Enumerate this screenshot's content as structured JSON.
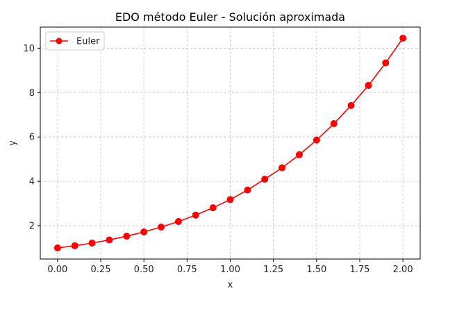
{
  "chart_data": {
    "type": "line",
    "title": "EDO método Euler - Solución aproximada",
    "xlabel": "x",
    "ylabel": "y",
    "xlim": [
      -0.1,
      2.1
    ],
    "ylim": [
      0.5,
      10.95
    ],
    "xticks": [
      0.0,
      0.25,
      0.5,
      0.75,
      1.0,
      1.25,
      1.5,
      1.75,
      2.0
    ],
    "xtick_labels": [
      "0.00",
      "0.25",
      "0.50",
      "0.75",
      "1.00",
      "1.25",
      "1.50",
      "1.75",
      "2.00"
    ],
    "yticks": [
      2,
      4,
      6,
      8,
      10
    ],
    "ytick_labels": [
      "2",
      "4",
      "6",
      "8",
      "10"
    ],
    "grid": true,
    "legend_position": "top-left",
    "series": [
      {
        "name": "Euler",
        "color": "#ff0000",
        "marker": "circle",
        "x": [
          0.0,
          0.1,
          0.2,
          0.3,
          0.4,
          0.5,
          0.6,
          0.7,
          0.8,
          0.9,
          1.0,
          1.1,
          1.2,
          1.3,
          1.4,
          1.5,
          1.6,
          1.7,
          1.8,
          1.9,
          2.0
        ],
        "y": [
          1.0,
          1.1,
          1.22,
          1.36,
          1.53,
          1.72,
          1.94,
          2.19,
          2.48,
          2.81,
          3.18,
          3.61,
          4.1,
          4.61,
          5.2,
          5.86,
          6.6,
          7.42,
          8.32,
          9.34,
          10.45
        ]
      }
    ]
  }
}
